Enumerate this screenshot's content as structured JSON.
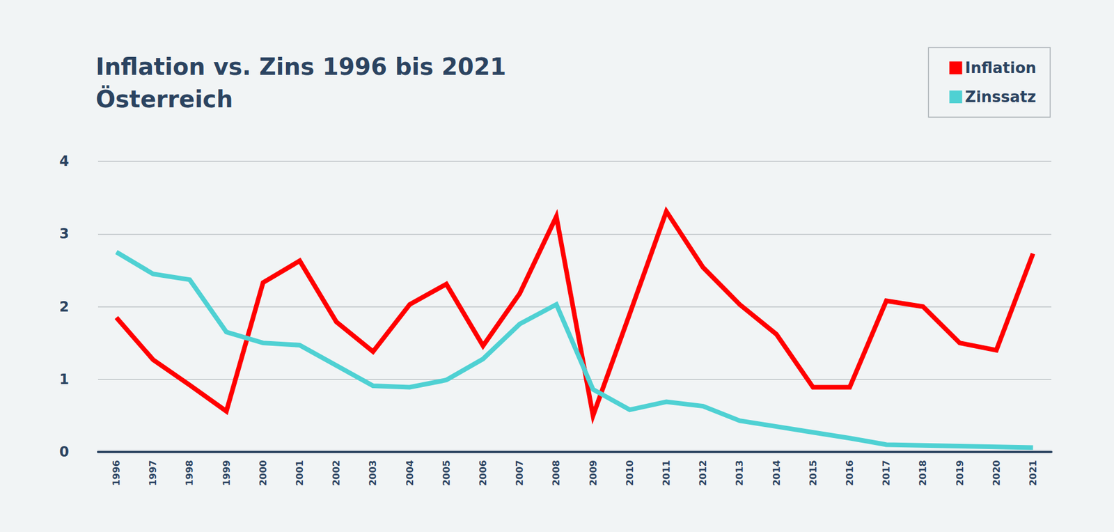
{
  "chart_data": {
    "type": "line",
    "title": "Inflation vs. Zins 1996 bis 2021\nÖsterreich",
    "categories": [
      "1996",
      "1997",
      "1998",
      "1999",
      "2000",
      "2001",
      "2002",
      "2003",
      "2004",
      "2005",
      "2006",
      "2007",
      "2008",
      "2009",
      "2010",
      "2011",
      "2012",
      "2013",
      "2014",
      "2015",
      "2016",
      "2017",
      "2018",
      "2019",
      "2020",
      "2021"
    ],
    "series": [
      {
        "name": "Inflation",
        "color": "#ff0000",
        "values": [
          1.85,
          1.27,
          0.92,
          0.56,
          2.33,
          2.63,
          1.79,
          1.38,
          2.03,
          2.31,
          1.46,
          2.18,
          3.24,
          0.5,
          1.9,
          3.31,
          2.54,
          2.03,
          1.62,
          0.89,
          0.89,
          2.08,
          2.0,
          1.5,
          1.4,
          2.73
        ]
      },
      {
        "name": "Zinssatz",
        "color": "#4fd1d3",
        "values": [
          2.75,
          2.45,
          2.37,
          1.65,
          1.5,
          1.47,
          1.19,
          0.91,
          0.89,
          0.99,
          1.28,
          1.76,
          2.03,
          0.86,
          0.58,
          0.69,
          0.63,
          0.43,
          0.35,
          0.27,
          0.19,
          0.1,
          0.09,
          0.08,
          0.07,
          0.06
        ]
      }
    ],
    "ylim": [
      0,
      4
    ],
    "yticks": [
      0,
      1,
      2,
      3,
      4
    ],
    "grid": true,
    "legend": "top-right"
  }
}
